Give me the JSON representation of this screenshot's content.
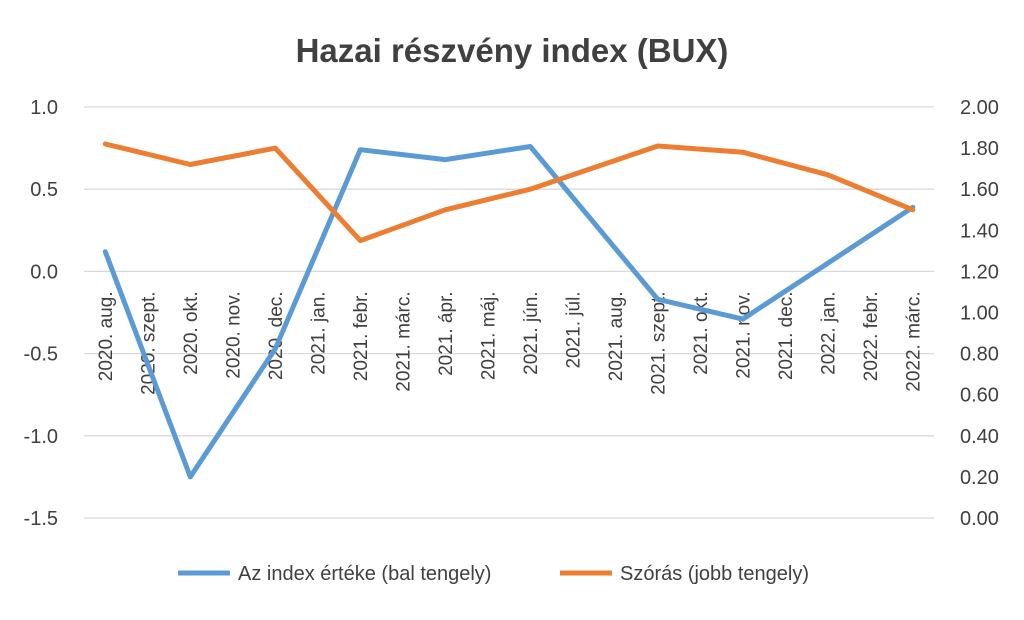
{
  "chart_data": {
    "type": "line",
    "title": "Hazai részvény index (BUX)",
    "categories": [
      "2020. aug.",
      "2020. szept.",
      "2020. okt.",
      "2020. nov.",
      "2020. dec.",
      "2021. jan.",
      "2021. febr.",
      "2021. márc.",
      "2021. ápr.",
      "2021. máj.",
      "2021. jún.",
      "2021. júl.",
      "2021. aug.",
      "2021. szept.",
      "2021. okt.",
      "2021. nov.",
      "2021. dec.",
      "2022. jan.",
      "2022. febr.",
      "2022. márc."
    ],
    "category_labels": [
      "2020. aug.",
      "2020. szept.",
      "2020. okt.",
      "2020. nov.",
      "2020. dec.",
      "2021. jan.",
      "2021. febr.",
      "2021. márc.",
      "2021. ápr.",
      "2021. máj.",
      "2021. jún.",
      "2021. júl.",
      "2021. aug.",
      "2021. szept.",
      "2021. okt.",
      "2021. nov.",
      "2021. dec.",
      "2022. jan.",
      "2022. febr.",
      "2022. márc."
    ],
    "x_ticks": [
      "2020. aug.",
      "2020. okt.",
      "2020. dec.",
      "2021. febr.",
      "2021. ápr.",
      "2021. jún.",
      "2021. aug.",
      "2021. okt.",
      "2021. dec.",
      "2022. febr."
    ],
    "y_left": {
      "ylim": [
        -1.5,
        1.0
      ],
      "ticks": [
        1.0,
        0.5,
        0.0,
        -0.5,
        -1.0,
        -1.5
      ],
      "tick_labels": [
        "1.0",
        "0.5",
        "0.0",
        "-0.5",
        "-1.0",
        "-1.5"
      ]
    },
    "y_right": {
      "ylim": [
        0.0,
        2.0
      ],
      "ticks": [
        2.0,
        1.8,
        1.6,
        1.4,
        1.2,
        1.0,
        0.8,
        0.6,
        0.4,
        0.2,
        0.0
      ],
      "tick_labels": [
        "2.00",
        "1.80",
        "1.60",
        "1.40",
        "1.20",
        "1.00",
        "0.80",
        "0.60",
        "0.40",
        "0.20",
        "0.00"
      ]
    },
    "grid": true,
    "legend_position": "bottom",
    "series": [
      {
        "name": "Az index értéke (bal tengely)",
        "axis": "left",
        "color": "#5b9bd5",
        "x": [
          "2020. aug.",
          "2020. okt.",
          "2020. dec.",
          "2021. febr.",
          "2021. ápr.",
          "2021. jún.",
          "2021. szept.",
          "2021. nov.",
          "2022. márc."
        ],
        "values": [
          0.12,
          -1.25,
          -0.47,
          0.74,
          0.68,
          0.76,
          -0.17,
          -0.29,
          0.39
        ]
      },
      {
        "name": "Szórás (jobb tengely)",
        "axis": "right",
        "color": "#ed7d31",
        "x": [
          "2020. aug.",
          "2020. okt.",
          "2020. dec.",
          "2021. febr.",
          "2021. ápr.",
          "2021. jún.",
          "2021. szept.",
          "2021. nov.",
          "2022. jan.",
          "2022. márc."
        ],
        "values": [
          1.82,
          1.72,
          1.8,
          1.35,
          1.5,
          1.6,
          1.81,
          1.78,
          1.67,
          1.5
        ]
      }
    ]
  }
}
